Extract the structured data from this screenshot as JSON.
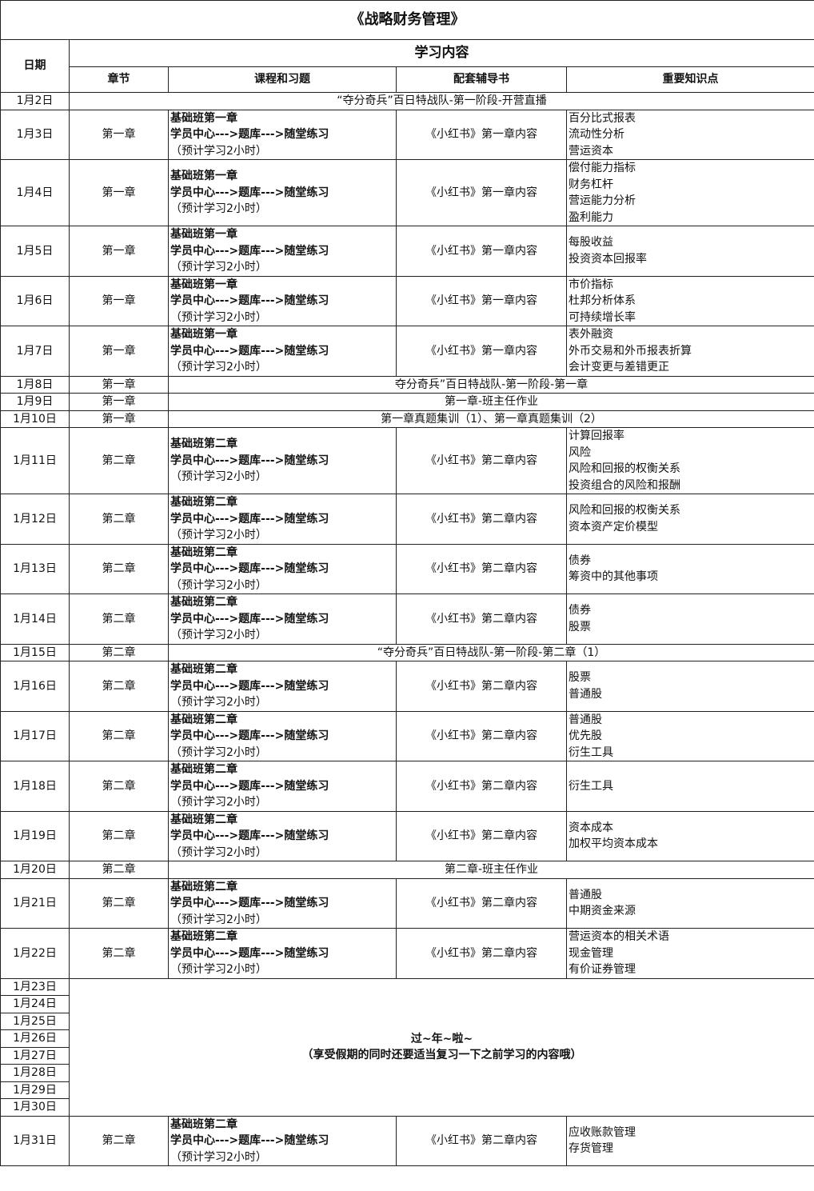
{
  "title": "《战略财务管理》",
  "headers": {
    "date": "日期",
    "group": "学习内容",
    "columns": [
      "章节",
      "课程和习题",
      "配套辅导书",
      "重要知识点"
    ]
  },
  "rows": [
    {
      "date": "1月2日",
      "span": "“夺分奇兵”百日特战队-第一阶段-开营直播"
    },
    {
      "date": "1月3日",
      "chapter": "第一章",
      "course": [
        "基础班第一章",
        "学员中心--->题库--->随堂练习",
        "（预计学习2小时）"
      ],
      "book": "《小红书》第一章内容",
      "points": [
        "百分比式报表",
        "流动性分析",
        "营运资本"
      ]
    },
    {
      "date": "1月4日",
      "chapter": "第一章",
      "course": [
        "基础班第一章",
        "学员中心--->题库--->随堂练习",
        "（预计学习2小时）"
      ],
      "book": "《小红书》第一章内容",
      "points": [
        "偿付能力指标",
        "财务杠杆",
        "营运能力分析",
        "盈利能力"
      ]
    },
    {
      "date": "1月5日",
      "chapter": "第一章",
      "course": [
        "基础班第一章",
        "学员中心--->题库--->随堂练习",
        "（预计学习2小时）"
      ],
      "book": "《小红书》第一章内容",
      "points": [
        "每股收益",
        "投资资本回报率"
      ]
    },
    {
      "date": "1月6日",
      "chapter": "第一章",
      "course": [
        "基础班第一章",
        "学员中心--->题库--->随堂练习",
        "（预计学习2小时）"
      ],
      "book": "《小红书》第一章内容",
      "points": [
        "市价指标",
        "杜邦分析体系",
        "可持续增长率"
      ]
    },
    {
      "date": "1月7日",
      "chapter": "第一章",
      "course": [
        "基础班第一章",
        "学员中心--->题库--->随堂练习",
        "（预计学习2小时）"
      ],
      "book": "《小红书》第一章内容",
      "points": [
        "表外融资",
        "外币交易和外币报表折算",
        "会计变更与差错更正"
      ]
    },
    {
      "date": "1月8日",
      "chapter": "第一章",
      "span": "夺分奇兵”百日特战队-第一阶段-第一章"
    },
    {
      "date": "1月9日",
      "chapter": "第一章",
      "span": "第一章-班主任作业"
    },
    {
      "date": "1月10日",
      "chapter": "第一章",
      "span": "第一章真题集训（1）、第一章真题集训（2）"
    },
    {
      "date": "1月11日",
      "chapter": "第二章",
      "course": [
        "基础班第二章",
        "学员中心--->题库--->随堂练习",
        "（预计学习2小时）"
      ],
      "book": "《小红书》第二章内容",
      "points": [
        "计算回报率",
        "风险",
        "风险和回报的权衡关系",
        "投资组合的风险和报酬"
      ]
    },
    {
      "date": "1月12日",
      "chapter": "第二章",
      "course": [
        "基础班第二章",
        "学员中心--->题库--->随堂练习",
        "（预计学习2小时）"
      ],
      "book": "《小红书》第二章内容",
      "points": [
        "风险和回报的权衡关系",
        "资本资产定价模型"
      ]
    },
    {
      "date": "1月13日",
      "chapter": "第二章",
      "course": [
        "基础班第二章",
        "学员中心--->题库--->随堂练习",
        "（预计学习2小时）"
      ],
      "book": "《小红书》第二章内容",
      "points": [
        "债券",
        "筹资中的其他事项"
      ]
    },
    {
      "date": "1月14日",
      "chapter": "第二章",
      "course": [
        "基础班第二章",
        "学员中心--->题库--->随堂练习",
        "（预计学习2小时）"
      ],
      "book": "《小红书》第二章内容",
      "points": [
        "债券",
        "股票"
      ]
    },
    {
      "date": "1月15日",
      "chapter": "第二章",
      "span": "“夺分奇兵”百日特战队-第一阶段-第二章（1）"
    },
    {
      "date": "1月16日",
      "chapter": "第二章",
      "course": [
        "基础班第二章",
        "学员中心--->题库--->随堂练习",
        "（预计学习2小时）"
      ],
      "book": "《小红书》第二章内容",
      "points": [
        "股票",
        "普通股"
      ]
    },
    {
      "date": "1月17日",
      "chapter": "第二章",
      "course": [
        "基础班第二章",
        "学员中心--->题库--->随堂练习",
        "（预计学习2小时）"
      ],
      "book": "《小红书》第二章内容",
      "points": [
        "普通股",
        "优先股",
        "衍生工具"
      ]
    },
    {
      "date": "1月18日",
      "chapter": "第二章",
      "course": [
        "基础班第二章",
        "学员中心--->题库--->随堂练习",
        "（预计学习2小时）"
      ],
      "book": "《小红书》第二章内容",
      "points": [
        "衍生工具"
      ]
    },
    {
      "date": "1月19日",
      "chapter": "第二章",
      "course": [
        "基础班第二章",
        "学员中心--->题库--->随堂练习",
        "（预计学习2小时）"
      ],
      "book": "《小红书》第二章内容",
      "points": [
        "资本成本",
        "加权平均资本成本"
      ]
    },
    {
      "date": "1月20日",
      "chapter": "第二章",
      "span": "第二章-班主任作业"
    },
    {
      "date": "1月21日",
      "chapter": "第二章",
      "course": [
        "基础班第二章",
        "学员中心--->题库--->随堂练习",
        "（预计学习2小时）"
      ],
      "book": "《小红书》第二章内容",
      "points": [
        "普通股",
        "中期资金来源"
      ]
    },
    {
      "date": "1月22日",
      "chapter": "第二章",
      "course": [
        "基础班第二章",
        "学员中心--->题库--->随堂练习",
        "（预计学习2小时）"
      ],
      "book": "《小红书》第二章内容",
      "points": [
        "营运资本的相关术语",
        "现金管理",
        "有价证券管理"
      ]
    },
    {
      "dates": [
        "1月23日",
        "1月24日",
        "1月25日",
        "1月26日",
        "1月27日",
        "1月28日",
        "1月29日",
        "1月30日"
      ],
      "lines": [
        "过~年~啦~",
        "（享受假期的同时还要适当复习一下之前学习的内容哦）"
      ]
    },
    {
      "date": "1月31日",
      "chapter": "第二章",
      "course": [
        "基础班第二章",
        "学员中心--->题库--->随堂练习",
        "（预计学习2小时）"
      ],
      "book": "《小红书》第二章内容",
      "points": [
        "应收账款管理",
        "存货管理"
      ]
    }
  ]
}
